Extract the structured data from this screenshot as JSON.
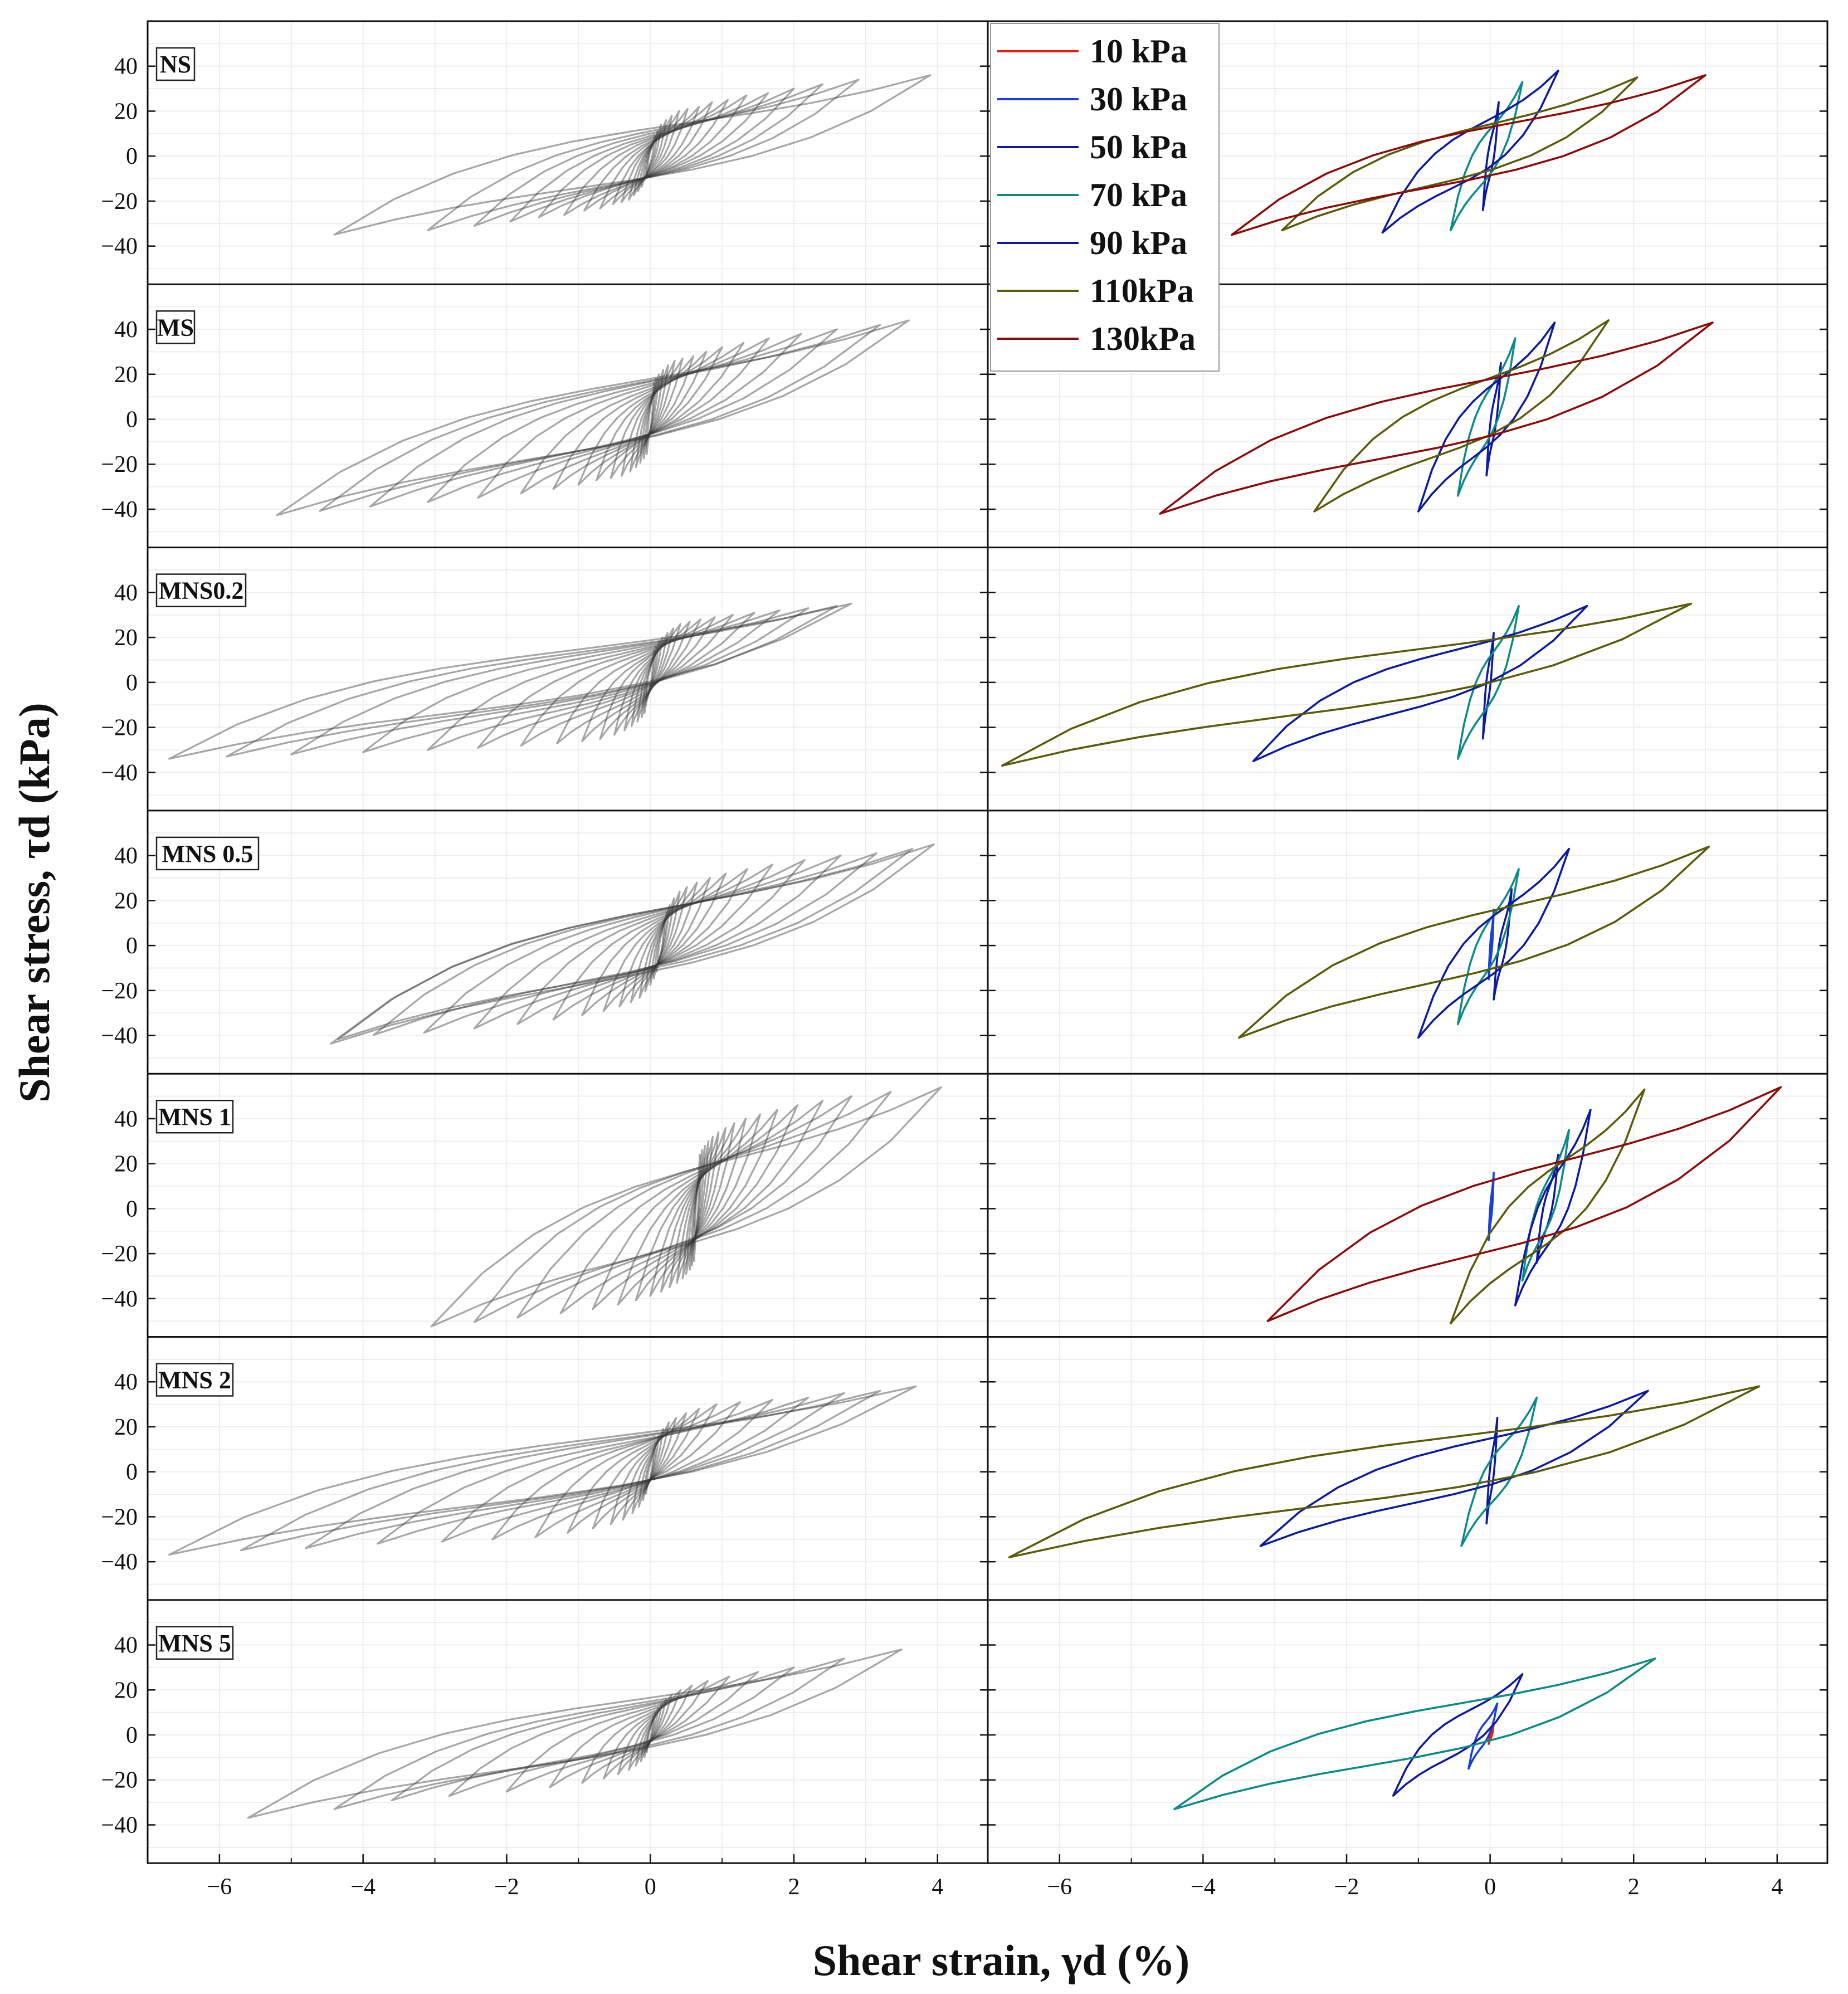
{
  "chart_data": {
    "type": "line",
    "layout": "7 rows x 2 columns of stress-strain hysteresis-loop panels",
    "xlabel": "Shear strain, γd (%)",
    "ylabel": "Shear stress, τd (kPa)",
    "xlim": [
      -7.0,
      4.7
    ],
    "ylim": [
      -57,
      60
    ],
    "xticks": [
      -6,
      -4,
      -2,
      0,
      2,
      4
    ],
    "yticks": [
      -40,
      -20,
      0,
      20,
      40
    ],
    "xtick_labels": [
      "−6",
      "−4",
      "−2",
      "0",
      "2",
      "4"
    ],
    "ytick_labels": [
      "−40",
      "−20",
      "0",
      "20",
      "40"
    ],
    "grid": true,
    "legend_position": "top of right column, overlapping first row",
    "legend": [
      {
        "name": "10 kPa",
        "color": "#e0201b"
      },
      {
        "name": "30 kPa",
        "color": "#1a3fd9"
      },
      {
        "name": "50 kPa",
        "color": "#0c1aa0"
      },
      {
        "name": "70 kPa",
        "color": "#0b8a88"
      },
      {
        "name": "90 kPa",
        "color": "#0c1a9e"
      },
      {
        "name": "110kPa",
        "color": "#5a5a08"
      },
      {
        "name": "130kPa",
        "color": "#8b0a0a"
      }
    ],
    "left_color": "#3a3a3a",
    "panels": [
      {
        "label": "NS",
        "left": {
          "cycles": 16,
          "x_shift": 0.0,
          "tau_max": [
            9,
            11,
            14,
            16,
            18,
            20,
            21,
            22,
            24,
            25,
            27,
            28,
            30,
            32,
            34,
            36
          ],
          "gamma_max": [
            0.06,
            0.1,
            0.15,
            0.22,
            0.3,
            0.4,
            0.52,
            0.68,
            0.86,
            1.08,
            1.34,
            1.64,
            2.0,
            2.4,
            2.9,
            3.9
          ],
          "gamma_min": [
            -0.05,
            -0.08,
            -0.12,
            -0.17,
            -0.23,
            -0.3,
            -0.4,
            -0.52,
            -0.7,
            -0.92,
            -1.2,
            -1.55,
            -1.95,
            -2.45,
            -3.1,
            -4.4
          ]
        },
        "right": [
          {
            "series": "50 kPa",
            "tau_max": 24,
            "tau_min": -24,
            "gamma_max": 0.12,
            "gamma_min": -0.1,
            "x_shift": 0.0
          },
          {
            "series": "70 kPa",
            "tau_max": 33,
            "tau_min": -33,
            "gamma_max": 0.45,
            "gamma_min": -0.55,
            "x_shift": 0.0
          },
          {
            "series": "90 kPa",
            "tau_max": 38,
            "tau_min": -34,
            "gamma_max": 0.95,
            "gamma_min": -1.5,
            "x_shift": 0.0
          },
          {
            "series": "110kPa",
            "tau_max": 35,
            "tau_min": -33,
            "gamma_max": 2.05,
            "gamma_min": -2.9,
            "x_shift": 0.0
          },
          {
            "series": "130kPa",
            "tau_max": 36,
            "tau_min": -35,
            "gamma_max": 3.0,
            "gamma_min": -3.6,
            "x_shift": 0.0
          }
        ]
      },
      {
        "label": "MS",
        "left": {
          "cycles": 16,
          "x_shift": 0.0,
          "tau_max": [
            16,
            18,
            20,
            22,
            24,
            26,
            27,
            28,
            30,
            32,
            34,
            36,
            38,
            40,
            42,
            44
          ],
          "gamma_max": [
            0.05,
            0.08,
            0.12,
            0.18,
            0.25,
            0.34,
            0.45,
            0.6,
            0.78,
            1.0,
            1.3,
            1.65,
            2.1,
            2.6,
            3.2,
            3.6
          ],
          "gamma_min": [
            -0.05,
            -0.09,
            -0.14,
            -0.2,
            -0.28,
            -0.4,
            -0.55,
            -0.75,
            -1.0,
            -1.35,
            -1.8,
            -2.4,
            -3.1,
            -3.9,
            -4.6,
            -5.2
          ]
        },
        "right": [
          {
            "series": "50 kPa",
            "tau_max": 25,
            "tau_min": -25,
            "gamma_max": 0.15,
            "gamma_min": -0.05,
            "x_shift": 0.0
          },
          {
            "series": "70 kPa",
            "tau_max": 36,
            "tau_min": -34,
            "gamma_max": 0.35,
            "gamma_min": -0.45,
            "x_shift": 0.0
          },
          {
            "series": "90 kPa",
            "tau_max": 43,
            "tau_min": -41,
            "gamma_max": 0.9,
            "gamma_min": -1.0,
            "x_shift": 0.0
          },
          {
            "series": "110kPa",
            "tau_max": 44,
            "tau_min": -41,
            "gamma_max": 1.65,
            "gamma_min": -2.45,
            "x_shift": 0.0
          },
          {
            "series": "130kPa",
            "tau_max": 43,
            "tau_min": -42,
            "gamma_max": 3.1,
            "gamma_min": -4.6,
            "x_shift": 0.0
          }
        ]
      },
      {
        "label": "MNS0.2",
        "left": {
          "cycles": 16,
          "x_shift": 0.0,
          "tau_max": [
            14,
            16,
            18,
            20,
            22,
            24,
            26,
            27,
            28,
            29,
            30,
            31,
            32,
            33,
            34,
            35
          ],
          "gamma_max": [
            0.05,
            0.08,
            0.12,
            0.17,
            0.24,
            0.32,
            0.42,
            0.55,
            0.7,
            0.9,
            1.15,
            1.45,
            1.8,
            2.2,
            2.6,
            2.8
          ],
          "gamma_min": [
            -0.08,
            -0.12,
            -0.18,
            -0.26,
            -0.36,
            -0.5,
            -0.7,
            -0.95,
            -1.3,
            -1.8,
            -2.4,
            -3.1,
            -4.0,
            -5.0,
            -5.9,
            -6.7
          ]
        },
        "right": [
          {
            "series": "50 kPa",
            "tau_max": 22,
            "tau_min": -25,
            "gamma_max": 0.05,
            "gamma_min": -0.1,
            "x_shift": 0.0
          },
          {
            "series": "70 kPa",
            "tau_max": 34,
            "tau_min": -34,
            "gamma_max": 0.4,
            "gamma_min": -0.45,
            "x_shift": 0.0
          },
          {
            "series": "90 kPa",
            "tau_max": 34,
            "tau_min": -35,
            "gamma_max": 1.35,
            "gamma_min": -3.3,
            "x_shift": 0.0
          },
          {
            "series": "110kPa",
            "tau_max": 35,
            "tau_min": -37,
            "gamma_max": 2.8,
            "gamma_min": -6.8,
            "x_shift": 0.0
          }
        ]
      },
      {
        "label": "MNS 0.5",
        "left": {
          "cycles": 16,
          "x_shift": 0.15,
          "tau_max": [
            12,
            15,
            18,
            21,
            24,
            26,
            28,
            30,
            32,
            34,
            36,
            38,
            40,
            41,
            43,
            45
          ],
          "gamma_max": [
            0.05,
            0.08,
            0.12,
            0.18,
            0.26,
            0.36,
            0.5,
            0.68,
            0.9,
            1.2,
            1.55,
            2.0,
            2.5,
            3.0,
            3.5,
            3.8
          ],
          "gamma_min": [
            -0.06,
            -0.1,
            -0.15,
            -0.22,
            -0.3,
            -0.42,
            -0.58,
            -0.8,
            -1.1,
            -1.5,
            -2.0,
            -2.6,
            -3.3,
            -4.0,
            -4.5,
            -4.6
          ]
        },
        "right": [
          {
            "series": "30 kPa",
            "tau_max": 16,
            "tau_min": -15,
            "gamma_max": 0.05,
            "gamma_min": -0.02,
            "x_shift": 0.0
          },
          {
            "series": "50 kPa",
            "tau_max": 25,
            "tau_min": -24,
            "gamma_max": 0.15,
            "gamma_min": -0.1,
            "x_shift": 0.15
          },
          {
            "series": "70 kPa",
            "tau_max": 34,
            "tau_min": -35,
            "gamma_max": 0.4,
            "gamma_min": -0.45,
            "x_shift": 0.0
          },
          {
            "series": "90 kPa",
            "tau_max": 43,
            "tau_min": -41,
            "gamma_max": 1.1,
            "gamma_min": -1.0,
            "x_shift": 0.0
          },
          {
            "series": "110kPa",
            "tau_max": 44,
            "tau_min": -41,
            "gamma_max": 3.05,
            "gamma_min": -3.5,
            "x_shift": 0.0
          }
        ]
      },
      {
        "label": "MNS 1",
        "left": {
          "cycles": 16,
          "x_shift": 0.65,
          "tau_max": [
            24,
            26,
            28,
            30,
            32,
            34,
            36,
            38,
            40,
            42,
            44,
            46,
            48,
            50,
            52,
            54
          ],
          "gamma_max": [
            0.04,
            0.07,
            0.11,
            0.16,
            0.22,
            0.3,
            0.4,
            0.52,
            0.68,
            0.88,
            1.12,
            1.4,
            1.75,
            2.15,
            2.7,
            3.4
          ],
          "gamma_min": [
            -0.04,
            -0.07,
            -0.1,
            -0.15,
            -0.2,
            -0.28,
            -0.38,
            -0.5,
            -0.65,
            -0.85,
            -1.1,
            -1.45,
            -1.9,
            -2.5,
            -3.1,
            -3.7
          ]
        },
        "right": [
          {
            "series": "30 kPa",
            "tau_max": 16,
            "tau_min": -14,
            "gamma_max": 0.05,
            "gamma_min": -0.02,
            "x_shift": 0.0
          },
          {
            "series": "50 kPa",
            "tau_max": 24,
            "tau_min": -24,
            "gamma_max": 0.2,
            "gamma_min": -0.1,
            "x_shift": 0.75
          },
          {
            "series": "70 kPa",
            "tau_max": 35,
            "tau_min": -32,
            "gamma_max": 0.35,
            "gamma_min": -0.3,
            "x_shift": 0.75
          },
          {
            "series": "90 kPa",
            "tau_max": 44,
            "tau_min": -43,
            "gamma_max": 0.6,
            "gamma_min": -0.45,
            "x_shift": 0.8
          },
          {
            "series": "110kPa",
            "tau_max": 53,
            "tau_min": -51,
            "gamma_max": 1.25,
            "gamma_min": -1.45,
            "x_shift": 0.9
          },
          {
            "series": "130kPa",
            "tau_max": 54,
            "tau_min": -50,
            "gamma_max": 3.1,
            "gamma_min": -4.05,
            "x_shift": 0.95
          }
        ]
      },
      {
        "label": "MNS 2",
        "left": {
          "cycles": 15,
          "x_shift": 0.0,
          "tau_max": [
            10,
            13,
            16,
            19,
            22,
            24,
            26,
            28,
            30,
            31,
            32,
            33,
            35,
            36,
            38
          ],
          "gamma_max": [
            0.05,
            0.08,
            0.12,
            0.18,
            0.26,
            0.36,
            0.5,
            0.68,
            0.92,
            1.25,
            1.7,
            2.2,
            2.7,
            3.2,
            3.7
          ],
          "gamma_min": [
            -0.06,
            -0.1,
            -0.16,
            -0.25,
            -0.38,
            -0.55,
            -0.8,
            -1.15,
            -1.6,
            -2.2,
            -2.9,
            -3.8,
            -4.8,
            -5.7,
            -6.7
          ]
        },
        "right": [
          {
            "series": "50 kPa",
            "tau_max": 24,
            "tau_min": -23,
            "gamma_max": 0.1,
            "gamma_min": -0.05,
            "x_shift": 0.0
          },
          {
            "series": "70 kPa",
            "tau_max": 33,
            "tau_min": -33,
            "gamma_max": 0.65,
            "gamma_min": -0.4,
            "x_shift": 0.0
          },
          {
            "series": "90 kPa",
            "tau_max": 36,
            "tau_min": -33,
            "gamma_max": 2.2,
            "gamma_min": -3.2,
            "x_shift": 0.0
          },
          {
            "series": "110kPa",
            "tau_max": 38,
            "tau_min": -38,
            "gamma_max": 3.75,
            "gamma_min": -6.7,
            "x_shift": 0.0
          }
        ]
      },
      {
        "label": "MNS 5",
        "left": {
          "cycles": 14,
          "x_shift": 0.0,
          "tau_max": [
            8,
            10,
            12,
            14,
            16,
            18,
            20,
            22,
            24,
            26,
            28,
            30,
            34,
            38
          ],
          "gamma_max": [
            0.04,
            0.07,
            0.11,
            0.16,
            0.22,
            0.3,
            0.42,
            0.58,
            0.8,
            1.1,
            1.5,
            2.0,
            2.7,
            3.5
          ],
          "gamma_min": [
            -0.05,
            -0.08,
            -0.13,
            -0.2,
            -0.3,
            -0.45,
            -0.65,
            -0.95,
            -1.4,
            -2.0,
            -2.8,
            -3.6,
            -4.4,
            -5.6
          ]
        },
        "right": [
          {
            "series": "10 kPa",
            "tau_max": 5,
            "tau_min": -4,
            "gamma_max": 0.05,
            "gamma_min": -0.02,
            "x_shift": 0.0
          },
          {
            "series": "30 kPa",
            "tau_max": 14,
            "tau_min": -15,
            "gamma_max": 0.1,
            "gamma_min": -0.3,
            "x_shift": 0.0
          },
          {
            "series": "50 kPa",
            "tau_max": 27,
            "tau_min": -27,
            "gamma_max": 0.45,
            "gamma_min": -1.35,
            "x_shift": 0.0
          },
          {
            "series": "70 kPa",
            "tau_max": 34,
            "tau_min": -33,
            "gamma_max": 2.3,
            "gamma_min": -4.4,
            "x_shift": 0.0
          }
        ]
      }
    ]
  }
}
